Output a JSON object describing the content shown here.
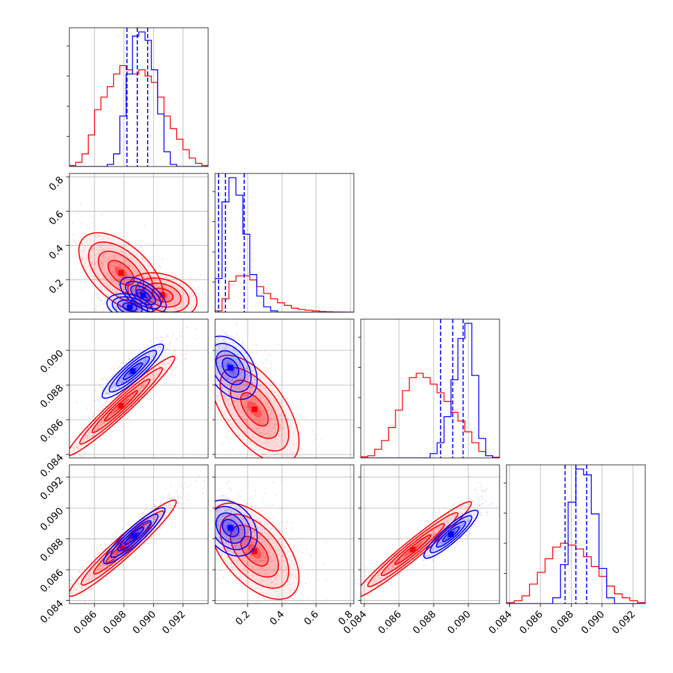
{
  "chart_data": {
    "type": "corner",
    "title": "",
    "grid": true,
    "colors": {
      "posterior_a": "#ff0000",
      "posterior_b": "#0000ff"
    },
    "parameters": [
      {
        "index": 0,
        "range": [
          0.0843,
          0.0937
        ],
        "ticks": [
          "0.086",
          "0.088",
          "0.090",
          "0.092"
        ],
        "tick_values": [
          0.086,
          0.088,
          0.09,
          0.092
        ]
      },
      {
        "index": 1,
        "range": [
          0.01,
          0.82
        ],
        "ticks": [
          "0.2",
          "0.4",
          "0.6",
          "0.8"
        ],
        "tick_values": [
          0.2,
          0.4,
          0.6,
          0.8
        ],
        "ticks_y": [
          "0.2",
          "0.4",
          "0.6",
          "0.8"
        ]
      },
      {
        "index": 2,
        "range": [
          0.0838,
          0.0918
        ],
        "ticks": [
          "0.084",
          "0.086",
          "0.088",
          "0.090"
        ],
        "tick_values": [
          0.084,
          0.086,
          0.088,
          0.09
        ]
      },
      {
        "index": 3,
        "range": [
          0.0838,
          0.0928
        ],
        "ticks": [
          "0.084",
          "0.086",
          "0.088",
          "0.090",
          "0.092"
        ],
        "tick_values": [
          0.084,
          0.086,
          0.088,
          0.09,
          0.092
        ]
      }
    ],
    "y_tick_labels": {
      "row1": [
        "0.2",
        "0.4",
        "0.6",
        "0.8"
      ],
      "row2": [
        "0.084",
        "0.086",
        "0.088",
        "0.090"
      ],
      "row3": [
        "0.084",
        "0.086",
        "0.088",
        "0.090",
        "0.092"
      ]
    },
    "histograms": [
      {
        "param": 0,
        "series": [
          {
            "name": "red",
            "counts": [
              0.5,
              2,
              6,
              15,
              27,
              33,
              38,
              44,
              48,
              46,
              44,
              46,
              43,
              40,
              33,
              24,
              18,
              13,
              8,
              4,
              1.5,
              0.5
            ]
          },
          {
            "name": "blue",
            "counts": [
              0,
              0,
              0,
              0,
              0,
              0,
              1,
              6,
              24,
              44,
              62,
              64,
              60,
              46,
              25,
              7,
              1,
              0,
              0,
              0,
              0,
              0
            ]
          }
        ],
        "quantiles": [
          0.0882,
          0.0889,
          0.0896
        ]
      },
      {
        "param": 1,
        "series": [
          {
            "name": "red",
            "counts": [
              1,
              10,
              23,
              27,
              27,
              24,
              19,
              14,
              10,
              7,
              5,
              3,
              2,
              1.5,
              1,
              0.5,
              0.3,
              0.1,
              0.05,
              0
            ]
          },
          {
            "name": "blue",
            "counts": [
              25,
              82,
              100,
              87,
              58,
              28,
              12,
              4,
              1,
              0,
              0,
              0,
              0,
              0,
              0,
              0,
              0,
              0,
              0,
              0
            ]
          }
        ],
        "quantiles": [
          0.03,
          0.07,
          0.18
        ]
      },
      {
        "param": 2,
        "series": [
          {
            "name": "red",
            "counts": [
              0.5,
              1,
              4,
              8,
              14,
              22,
              31,
              37,
              39,
              37,
              34,
              30,
              26,
              21,
              17,
              12,
              7,
              3,
              1,
              0.3
            ]
          },
          {
            "name": "blue",
            "counts": [
              0,
              0,
              0,
              0,
              0,
              0,
              0,
              0,
              0,
              0,
              2,
              7,
              19,
              36,
              55,
              62,
              38,
              9,
              1,
              0
            ]
          }
        ],
        "quantiles": [
          0.0884,
          0.0891,
          0.0897
        ]
      },
      {
        "param": 3,
        "series": [
          {
            "name": "red",
            "counts": [
              0.5,
              1.5,
              4,
              10,
              16,
              23,
              29,
              31,
              30,
              28,
              24,
              19,
              14,
              9,
              5,
              3,
              1.5,
              0.5
            ]
          },
          {
            "name": "blue",
            "counts": [
              0,
              0,
              0,
              0,
              0,
              0,
              3,
              20,
              52,
              69,
              66,
              46,
              18,
              3,
              0,
              0,
              0,
              0
            ]
          }
        ],
        "quantiles": [
          0.0876,
          0.0883,
          0.089
        ]
      }
    ],
    "correlations": [
      {
        "x": 0,
        "y": 1,
        "red": {
          "center": [
            0.0878,
            0.24
          ],
          "sx": 0.0011,
          "sy": 0.09,
          "rho": -0.55,
          "center2": [
            0.0906,
            0.11
          ],
          "sx2": 0.0009,
          "sy2": 0.05,
          "rho2": -0.3
        },
        "blue": {
          "center": [
            0.0884,
            0.04
          ],
          "sx": 0.0006,
          "sy": 0.03,
          "rho": -0.3,
          "center2": [
            0.0893,
            0.11
          ],
          "sx2": 0.0006,
          "sy2": 0.04,
          "rho2": -0.6
        }
      },
      {
        "x": 0,
        "y": 2,
        "red": {
          "center": [
            0.0878,
            0.0868
          ],
          "sx": 0.0014,
          "sy": 0.0011,
          "rho": 0.97
        },
        "blue": {
          "center": [
            0.0886,
            0.0888
          ],
          "sx": 0.0008,
          "sy": 0.0006,
          "rho": 0.9
        }
      },
      {
        "x": 0,
        "y": 3,
        "red": {
          "center": [
            0.0879,
            0.0874
          ],
          "sx": 0.0014,
          "sy": 0.0012,
          "rho": 0.96
        },
        "blue": {
          "center": [
            0.0887,
            0.0882
          ],
          "sx": 0.0008,
          "sy": 0.0007,
          "rho": 0.92
        }
      },
      {
        "x": 1,
        "y": 2,
        "red": {
          "center": [
            0.24,
            0.0866
          ],
          "sx": 0.1,
          "sy": 0.0012,
          "rho": -0.6
        },
        "blue": {
          "center": [
            0.1,
            0.089
          ],
          "sx": 0.06,
          "sy": 0.0007,
          "rho": -0.4
        }
      },
      {
        "x": 1,
        "y": 3,
        "red": {
          "center": [
            0.24,
            0.0872
          ],
          "sx": 0.1,
          "sy": 0.0012,
          "rho": -0.55
        },
        "blue": {
          "center": [
            0.1,
            0.0887
          ],
          "sx": 0.06,
          "sy": 0.0007,
          "rho": -0.3
        }
      },
      {
        "x": 2,
        "y": 3,
        "red": {
          "center": [
            0.0868,
            0.0873
          ],
          "sx": 0.0013,
          "sy": 0.0012,
          "rho": 0.97
        },
        "blue": {
          "center": [
            0.089,
            0.0883
          ],
          "sx": 0.0006,
          "sy": 0.0006,
          "rho": 0.9
        }
      }
    ]
  }
}
